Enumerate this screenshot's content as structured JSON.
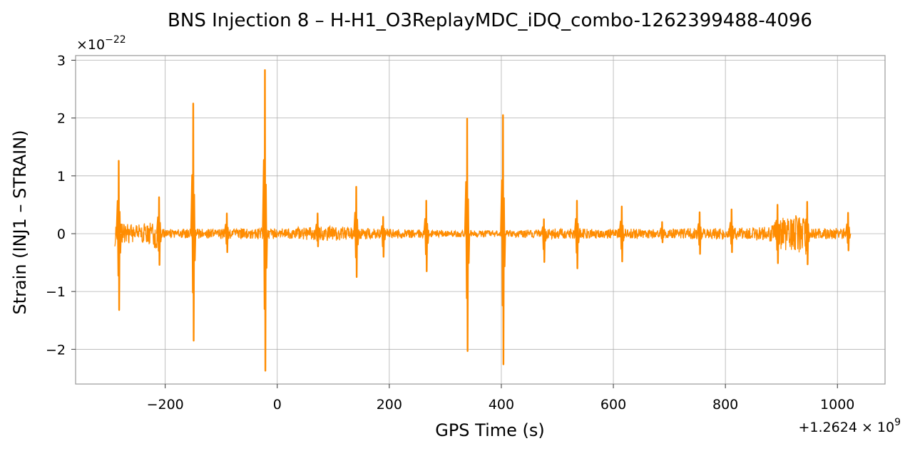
{
  "chart_data": {
    "type": "line",
    "title": "BNS Injection 8 – H-H1_O3ReplayMDC_iDQ_combo-1262399488-4096",
    "xlabel": "GPS Time (s)",
    "ylabel": "Strain (INJ1 – STRAIN)",
    "x_offset_text": {
      "prefix": "+1.2624 × 10",
      "exp": "9"
    },
    "y_scale_text": {
      "prefix": "×10",
      "exp": "−22"
    },
    "xlim": [
      -360,
      1085
    ],
    "ylim": [
      -2.6,
      3.08
    ],
    "xticks": [
      -200,
      0,
      200,
      400,
      600,
      800,
      1000
    ],
    "xtick_labels": [
      "−200",
      "0",
      "200",
      "400",
      "600",
      "800",
      "1000"
    ],
    "yticks": [
      -2,
      -1,
      0,
      1,
      2,
      3
    ],
    "ytick_labels": [
      "−2",
      "−1",
      "0",
      "1",
      "2",
      "3"
    ],
    "grid": true,
    "series": [
      {
        "color": "#ff8c00",
        "x_range": [
          -290,
          1022
        ],
        "noise_envelope": [
          {
            "x": -290,
            "y": 0.22
          },
          {
            "x": -260,
            "y": 0.18
          },
          {
            "x": -230,
            "y": 0.18
          },
          {
            "x": -211,
            "y": 0.3
          },
          {
            "x": -208,
            "y": 0.08
          },
          {
            "x": 0,
            "y": 0.1
          },
          {
            "x": 100,
            "y": 0.13
          },
          {
            "x": 150,
            "y": 0.1
          },
          {
            "x": 300,
            "y": 0.06
          },
          {
            "x": 400,
            "y": 0.06
          },
          {
            "x": 500,
            "y": 0.09
          },
          {
            "x": 600,
            "y": 0.09
          },
          {
            "x": 700,
            "y": 0.09
          },
          {
            "x": 850,
            "y": 0.11
          },
          {
            "x": 880,
            "y": 0.15
          },
          {
            "x": 900,
            "y": 0.28
          },
          {
            "x": 945,
            "y": 0.38
          },
          {
            "x": 950,
            "y": 0.1
          },
          {
            "x": 1022,
            "y": 0.1
          }
        ],
        "spikes": [
          {
            "x": -283,
            "max": 1.26,
            "min": -1.32
          },
          {
            "x": -211,
            "max": 0.63,
            "min": -0.54
          },
          {
            "x": -150,
            "max": 2.25,
            "min": -1.85
          },
          {
            "x": -90,
            "max": 0.35,
            "min": -0.32
          },
          {
            "x": -22,
            "max": 2.83,
            "min": -2.37
          },
          {
            "x": 72,
            "max": 0.35,
            "min": -0.22
          },
          {
            "x": 141,
            "max": 0.81,
            "min": -0.75
          },
          {
            "x": 189,
            "max": 0.29,
            "min": -0.4
          },
          {
            "x": 266,
            "max": 0.57,
            "min": -0.65
          },
          {
            "x": 339,
            "max": 1.99,
            "min": -2.03
          },
          {
            "x": 403,
            "max": 2.05,
            "min": -2.26
          },
          {
            "x": 476,
            "max": 0.25,
            "min": -0.49
          },
          {
            "x": 535,
            "max": 0.57,
            "min": -0.6
          },
          {
            "x": 615,
            "max": 0.47,
            "min": -0.48
          },
          {
            "x": 687,
            "max": 0.2,
            "min": -0.15
          },
          {
            "x": 754,
            "max": 0.37,
            "min": -0.35
          },
          {
            "x": 811,
            "max": 0.42,
            "min": -0.32
          },
          {
            "x": 893,
            "max": 0.5,
            "min": -0.51
          },
          {
            "x": 946,
            "max": 0.55,
            "min": -0.53
          },
          {
            "x": 1019,
            "max": 0.36,
            "min": -0.29
          }
        ]
      }
    ]
  }
}
